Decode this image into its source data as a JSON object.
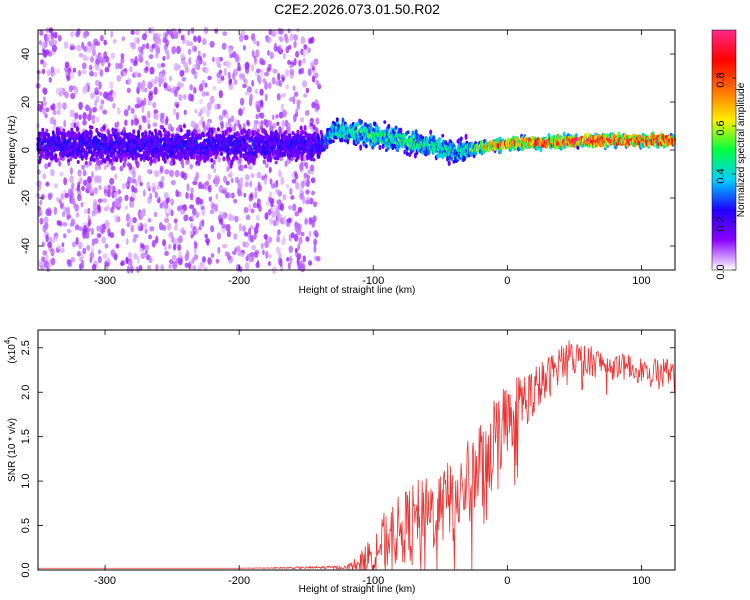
{
  "title": "C2E2.2026.073.01.50.R02",
  "chart_data": [
    {
      "type": "heatmap",
      "name": "spectrogram",
      "xlabel": "Height of straight line (km)",
      "ylabel": "Frequency (Hz)",
      "xlim": [
        -350,
        125
      ],
      "ylim": [
        -50,
        50
      ],
      "xticks": [
        -300,
        -200,
        -100,
        0,
        100
      ],
      "xtick_labels": [
        "-300",
        "-200",
        "-100",
        "0",
        "100"
      ],
      "yticks": [
        -40,
        -20,
        0,
        20,
        40
      ],
      "ytick_labels": [
        "-40",
        "-20",
        "0",
        "20",
        "40"
      ],
      "colorbar": {
        "label": "Normalized spectral amplitude",
        "range": [
          0,
          1
        ],
        "ticks": [
          0.0,
          0.2,
          0.4,
          0.6,
          0.8
        ],
        "tick_labels": [
          "0.0",
          "0.2",
          "0.4",
          "0.6",
          "0.8"
        ],
        "colors": [
          "#ffffff",
          "#8a00ff",
          "#2000ff",
          "#00d0ff",
          "#00ff40",
          "#ffee00",
          "#ff7000",
          "#ff0000",
          "#ff2a8a"
        ]
      },
      "track": {
        "x": [
          -350,
          -140,
          -130,
          -110,
          -90,
          -70,
          -50,
          -40,
          -30,
          -10,
          10,
          30,
          60,
          90,
          125
        ],
        "freq": [
          2,
          2,
          8,
          7,
          5,
          3,
          1,
          -1,
          0,
          2,
          3,
          3,
          4,
          4,
          4
        ],
        "peak_amplitude": [
          0.25,
          0.25,
          0.45,
          0.5,
          0.5,
          0.5,
          0.5,
          0.4,
          0.5,
          0.8,
          0.85,
          0.9,
          0.95,
          0.95,
          0.95
        ]
      },
      "noise_region": {
        "x_range": [
          -350,
          -140
        ],
        "freq_range": [
          -50,
          50
        ],
        "amplitude": 0.1
      }
    },
    {
      "type": "line",
      "name": "snr",
      "xlabel": "Height of straight line (km)",
      "ylabel": "SNR (10 * v/v)",
      "scale_label": "(x10",
      "scale_exponent": "4",
      "xlim": [
        -350,
        125
      ],
      "ylim": [
        0,
        2.7
      ],
      "xticks": [
        -300,
        -200,
        -100,
        0,
        100
      ],
      "xtick_labels": [
        "-300",
        "-200",
        "-100",
        "0",
        "100"
      ],
      "yticks": [
        0,
        0.5,
        1.0,
        1.5,
        2.0,
        2.5
      ],
      "ytick_labels": [
        "0.0",
        "0.5",
        "1.0",
        "1.5",
        "2.0",
        "2.5"
      ],
      "color": "#ee3333",
      "series": [
        {
          "name": "SNR",
          "x": [
            -350,
            -200,
            -120,
            -110,
            -100,
            -90,
            -80,
            -70,
            -60,
            -50,
            -40,
            -30,
            -20,
            -10,
            0,
            10,
            20,
            30,
            40,
            50,
            60,
            80,
            100,
            125
          ],
          "y": [
            0.02,
            0.02,
            0.03,
            0.08,
            0.2,
            0.35,
            0.45,
            0.55,
            0.6,
            0.7,
            0.8,
            0.95,
            1.2,
            1.5,
            1.7,
            1.9,
            2.0,
            2.15,
            2.35,
            2.4,
            2.35,
            2.3,
            2.25,
            2.25
          ],
          "spread": [
            0.0,
            0.0,
            0.02,
            0.1,
            0.25,
            0.35,
            0.4,
            0.45,
            0.45,
            0.45,
            0.5,
            0.5,
            0.55,
            0.5,
            0.4,
            0.35,
            0.3,
            0.25,
            0.22,
            0.2,
            0.18,
            0.15,
            0.15,
            0.15
          ]
        }
      ]
    }
  ]
}
